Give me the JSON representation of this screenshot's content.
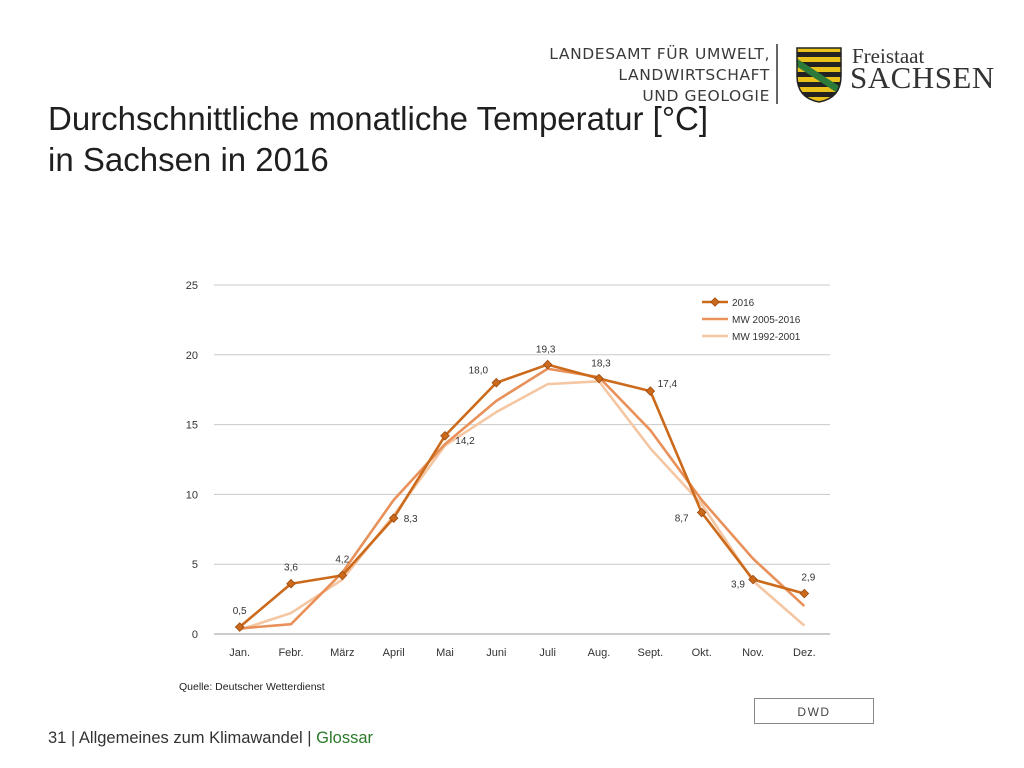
{
  "header": {
    "org_lines": [
      "LANDESAMT FÜR UMWELT,",
      "LANDWIRTSCHAFT",
      "UND GEOLOGIE"
    ],
    "state_small": "Freistaat",
    "state_big": "SACHSEN"
  },
  "title": {
    "line1": "Durchschnittliche monatliche Temperatur [°C]",
    "line2": "in Sachsen in 2016"
  },
  "chart_data": {
    "type": "line",
    "categories": [
      "Jan.",
      "Febr.",
      "März",
      "April",
      "Mai",
      "Juni",
      "Juli",
      "Aug.",
      "Sept.",
      "Okt.",
      "Nov.",
      "Dez."
    ],
    "ylim": [
      0,
      25
    ],
    "yticks": [
      0,
      5,
      10,
      15,
      20,
      25
    ],
    "grid": true,
    "legend_position": "top-right",
    "series": [
      {
        "name": "2016",
        "color": "#cc6a1c",
        "markers": true,
        "values": [
          0.5,
          3.6,
          4.2,
          8.3,
          14.2,
          18.0,
          19.3,
          18.3,
          17.4,
          8.7,
          3.9,
          2.9
        ],
        "labels": [
          "0,5",
          "3,6",
          "4,2",
          "8,3",
          "14,2",
          "18,0",
          "19,3",
          "18,3",
          "17,4",
          "8,7",
          "3,9",
          "2,9"
        ]
      },
      {
        "name": "MW 2005-2016",
        "color": "#e8915a",
        "markers": false,
        "values": [
          0.4,
          0.7,
          4.4,
          9.6,
          13.6,
          16.7,
          19.0,
          18.4,
          14.6,
          9.6,
          5.4,
          2.0
        ]
      },
      {
        "name": "MW 1992-2001",
        "color": "#f5c6a2",
        "markers": false,
        "values": [
          0.3,
          1.5,
          3.9,
          8.5,
          13.5,
          15.9,
          17.9,
          18.1,
          13.3,
          9.3,
          3.8,
          0.6
        ]
      }
    ]
  },
  "source": "Quelle: Deutscher Wetterdienst",
  "badge": "DWD",
  "footer": {
    "page_number": "31",
    "sep1": " | ",
    "section": "Allgemeines zum Klimawandel",
    "sep2": " | ",
    "link": "Glossar"
  },
  "colors": {
    "crest_green": "#2c7a3a",
    "crest_gold": "#e8c11a"
  }
}
